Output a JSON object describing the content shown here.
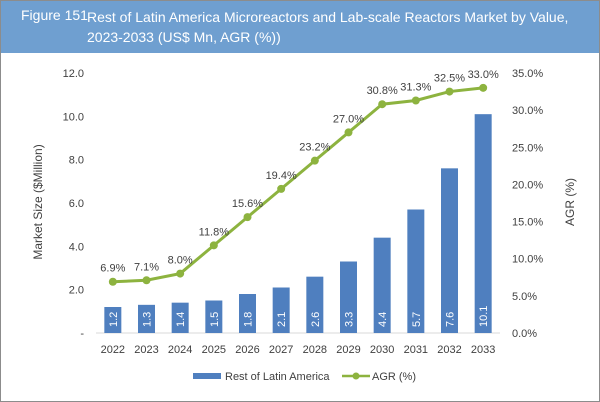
{
  "header": {
    "figure_number": "Figure 151",
    "title": "Rest of Latin America Microreactors and Lab-scale Reactors Market by Value, 2023-2033 (US$ Mn, AGR (%))"
  },
  "colors": {
    "header_bg": "#6f9fd0",
    "bar": "#4f7fbf",
    "line": "#8db33f"
  },
  "chart_data": {
    "type": "bar",
    "title": "Rest of Latin America Microreactors and Lab-scale Reactors Market by Value, 2023-2033 (US$ Mn, AGR (%))",
    "categories": [
      "2022",
      "2023",
      "2024",
      "2025",
      "2026",
      "2027",
      "2028",
      "2029",
      "2030",
      "2031",
      "2032",
      "2033"
    ],
    "series": [
      {
        "name": "Rest of Latin America",
        "type": "bar",
        "axis": "left",
        "values": [
          1.2,
          1.3,
          1.4,
          1.5,
          1.8,
          2.1,
          2.6,
          3.3,
          4.4,
          5.7,
          7.6,
          10.1
        ],
        "labels": [
          "1.2",
          "1.3",
          "1.4",
          "1.5",
          "1.8",
          "2.1",
          "2.6",
          "3.3",
          "4.4",
          "5.7",
          "7.6",
          "10.1"
        ]
      },
      {
        "name": "AGR (%)",
        "type": "line",
        "axis": "right",
        "values": [
          6.9,
          7.1,
          8.0,
          11.8,
          15.6,
          19.4,
          23.2,
          27.0,
          30.8,
          31.3,
          32.5,
          33.0
        ],
        "labels": [
          "6.9%",
          "7.1%",
          "8.0%",
          "11.8%",
          "15.6%",
          "19.4%",
          "23.2%",
          "27.0%",
          "30.8%",
          "31.3%",
          "32.5%",
          "33.0%"
        ]
      }
    ],
    "ylabel": "Market Size ($Million)",
    "y2label": "AGR (%)",
    "ylim": [
      0,
      12
    ],
    "y2lim": [
      0,
      35
    ],
    "yticks": [
      "-",
      "2.0",
      "4.0",
      "6.0",
      "8.0",
      "10.0",
      "12.0"
    ],
    "ytick_values": [
      0,
      2,
      4,
      6,
      8,
      10,
      12
    ],
    "y2ticks": [
      "0.0%",
      "5.0%",
      "10.0%",
      "15.0%",
      "20.0%",
      "25.0%",
      "30.0%",
      "35.0%"
    ],
    "y2tick_values": [
      0,
      5,
      10,
      15,
      20,
      25,
      30,
      35
    ],
    "grid": false,
    "legend": {
      "position": "bottom",
      "entries": [
        "Rest of Latin America",
        "AGR (%)"
      ]
    }
  }
}
